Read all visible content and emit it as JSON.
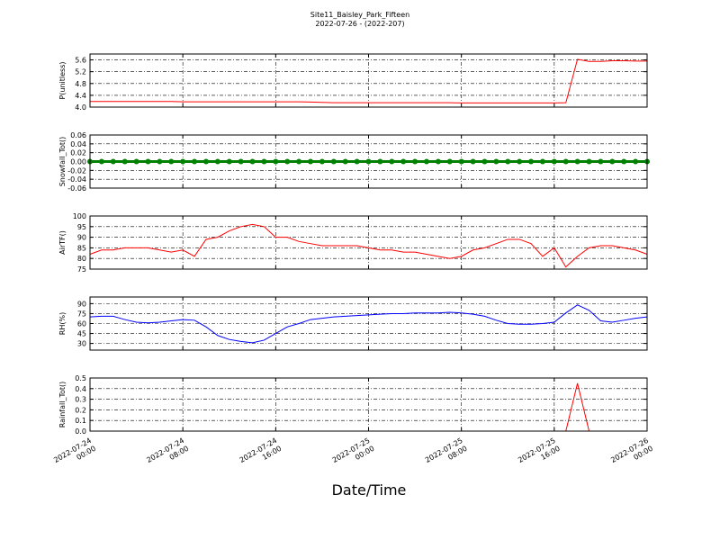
{
  "title": "Site11_Baisley_Park_Fifteen",
  "subtitle": "2022-07-26 - (2022-207)",
  "xlabel": "Date/Time",
  "xlim": [
    "2022-07-24 00:00",
    "2022-07-26 00:00"
  ],
  "xticks": [
    "2022-07-24 00:00",
    "2022-07-24 08:00",
    "2022-07-24 16:00",
    "2022-07-25 00:00",
    "2022-07-25 08:00",
    "2022-07-25 16:00",
    "2022-07-26 00:00"
  ],
  "x": [
    "2022-07-24 00:00",
    "2022-07-24 01:00",
    "2022-07-24 02:00",
    "2022-07-24 03:00",
    "2022-07-24 04:00",
    "2022-07-24 05:00",
    "2022-07-24 06:00",
    "2022-07-24 07:00",
    "2022-07-24 08:00",
    "2022-07-24 09:00",
    "2022-07-24 10:00",
    "2022-07-24 11:00",
    "2022-07-24 12:00",
    "2022-07-24 13:00",
    "2022-07-24 14:00",
    "2022-07-24 15:00",
    "2022-07-24 16:00",
    "2022-07-24 17:00",
    "2022-07-24 18:00",
    "2022-07-24 19:00",
    "2022-07-24 20:00",
    "2022-07-24 21:00",
    "2022-07-24 22:00",
    "2022-07-24 23:00",
    "2022-07-25 00:00",
    "2022-07-25 01:00",
    "2022-07-25 02:00",
    "2022-07-25 03:00",
    "2022-07-25 04:00",
    "2022-07-25 05:00",
    "2022-07-25 06:00",
    "2022-07-25 07:00",
    "2022-07-25 08:00",
    "2022-07-25 09:00",
    "2022-07-25 10:00",
    "2022-07-25 11:00",
    "2022-07-25 12:00",
    "2022-07-25 13:00",
    "2022-07-25 14:00",
    "2022-07-25 15:00",
    "2022-07-25 16:00",
    "2022-07-25 17:00",
    "2022-07-25 18:00",
    "2022-07-25 19:00",
    "2022-07-25 20:00",
    "2022-07-25 21:00",
    "2022-07-25 22:00",
    "2022-07-25 23:00",
    "2022-07-26 00:00"
  ],
  "grid": true,
  "chart_data": [
    {
      "type": "line",
      "ylabel": "P(unitless)",
      "ylim": [
        4.0,
        5.8
      ],
      "yticks": [
        {
          "value": 4,
          "label": "4.0"
        },
        4.4,
        4.8,
        5.2,
        5.6
      ],
      "series": [
        {
          "color": "#ff0000",
          "values": [
            4.19,
            4.19,
            4.19,
            4.19,
            4.19,
            4.19,
            4.19,
            4.19,
            4.18,
            4.18,
            4.18,
            4.18,
            4.18,
            4.18,
            4.18,
            4.18,
            4.18,
            4.18,
            4.18,
            4.17,
            4.16,
            4.15,
            4.15,
            4.15,
            4.15,
            4.15,
            4.15,
            4.15,
            4.15,
            4.15,
            4.15,
            4.15,
            4.14,
            4.14,
            4.14,
            4.14,
            4.14,
            4.14,
            4.14,
            4.14,
            4.14,
            4.15,
            5.62,
            5.55,
            5.55,
            5.57,
            5.57,
            5.56,
            5.56
          ]
        }
      ]
    },
    {
      "type": "line",
      "ylabel": "Snowfall_Tot()",
      "ylim": [
        -0.06,
        0.06
      ],
      "marker": true,
      "yticks": [
        -0.06,
        -0.04,
        -0.02,
        {
          "value": 0,
          "label": "0.00"
        },
        0.02,
        0.04,
        0.06
      ],
      "series": [
        {
          "color": "#008000",
          "values": [
            0,
            0,
            0,
            0,
            0,
            0,
            0,
            0,
            0,
            0,
            0,
            0,
            0,
            0,
            0,
            0,
            0,
            0,
            0,
            0,
            0,
            0,
            0,
            0,
            0,
            0,
            0,
            0,
            0,
            0,
            0,
            0,
            0,
            0,
            0,
            0,
            0,
            0,
            0,
            0,
            0,
            0,
            0,
            0,
            0,
            0,
            0,
            0,
            0
          ]
        }
      ]
    },
    {
      "type": "line",
      "ylabel": "AirTF()",
      "ylim": [
        75,
        100
      ],
      "yticks": [
        75,
        80,
        85,
        90,
        95,
        100
      ],
      "series": [
        {
          "color": "#ff0000",
          "values": [
            82,
            84,
            84,
            85,
            85,
            85,
            84,
            83,
            84,
            81,
            89,
            90,
            93,
            95,
            96,
            95,
            90,
            90,
            88,
            87,
            86,
            86,
            86,
            86,
            85,
            84,
            84,
            83,
            83,
            82,
            81,
            80,
            81,
            84,
            85,
            87,
            89,
            89,
            87,
            81,
            85,
            76,
            81,
            85,
            86,
            86,
            85,
            84,
            82
          ]
        }
      ]
    },
    {
      "type": "line",
      "ylabel": "RH(%)",
      "ylim": [
        20,
        100
      ],
      "yticks": [
        30,
        45,
        60,
        75,
        90
      ],
      "series": [
        {
          "color": "#0000ff",
          "values": [
            70,
            71,
            71,
            66,
            62,
            61,
            62,
            64,
            66,
            65,
            55,
            42,
            36,
            33,
            31,
            35,
            45,
            55,
            60,
            66,
            68,
            70,
            71,
            72,
            73,
            74,
            75,
            75,
            76,
            76,
            76,
            77,
            76,
            74,
            71,
            65,
            60,
            59,
            59,
            60,
            62,
            76,
            88,
            80,
            64,
            62,
            65,
            68,
            70
          ]
        }
      ]
    },
    {
      "type": "line",
      "ylabel": "Rainfall_Tot()",
      "ylim": [
        0,
        0.5
      ],
      "yticks": [
        {
          "value": 0,
          "label": "0.0"
        },
        0.1,
        0.2,
        0.3,
        0.4,
        0.5
      ],
      "series": [
        {
          "color": "#ff0000",
          "values": [
            0,
            0,
            0,
            0,
            0,
            0,
            0,
            0,
            0,
            0,
            0,
            0,
            0,
            0,
            0,
            0,
            0,
            0,
            0,
            0,
            0,
            0,
            0,
            0,
            0,
            0,
            0,
            0,
            0,
            0,
            0,
            0,
            0,
            0,
            0,
            0,
            0,
            0,
            0,
            0,
            0,
            0,
            0.45,
            0,
            0,
            0,
            0,
            0,
            0
          ]
        }
      ]
    }
  ]
}
